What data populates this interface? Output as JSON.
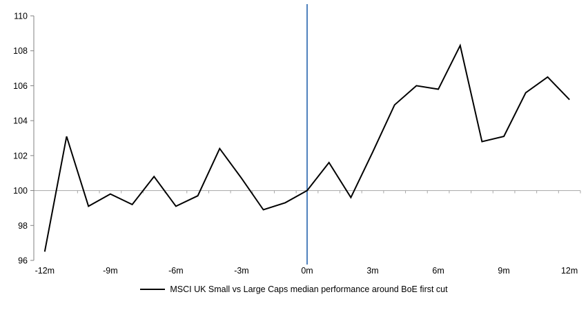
{
  "chart_data": {
    "type": "line",
    "title": "",
    "x_months": [
      -12,
      -11,
      -10,
      -9,
      -8,
      -7,
      -6,
      -5,
      -4,
      -3,
      -2,
      -1,
      0,
      1,
      2,
      3,
      4,
      5,
      6,
      7,
      8,
      9,
      10,
      11,
      12
    ],
    "series": [
      {
        "name": "MSCI UK Small vs Large Caps median performance around BoE first cut",
        "color": "#000000",
        "values": [
          96.5,
          103.1,
          99.1,
          99.8,
          99.2,
          100.8,
          99.1,
          99.7,
          102.4,
          100.7,
          98.9,
          99.3,
          100.0,
          101.6,
          99.6,
          102.2,
          104.9,
          106.0,
          105.8,
          108.3,
          102.8,
          103.1,
          105.6,
          106.5,
          105.2
        ]
      }
    ],
    "xticks": [
      {
        "value": -12,
        "label": "-12m"
      },
      {
        "value": -9,
        "label": "-9m"
      },
      {
        "value": -6,
        "label": "-6m"
      },
      {
        "value": -3,
        "label": "-3m"
      },
      {
        "value": 0,
        "label": "0m"
      },
      {
        "value": 3,
        "label": "3m"
      },
      {
        "value": 6,
        "label": "6m"
      },
      {
        "value": 9,
        "label": "9m"
      },
      {
        "value": 12,
        "label": "12m"
      }
    ],
    "yticks": [
      "96",
      "98",
      "100",
      "102",
      "104",
      "106",
      "108",
      "110"
    ],
    "ylim": [
      96,
      110
    ],
    "baseline_value": 100,
    "event_line_x": 0,
    "grid": "off",
    "legend_position": "bottom",
    "colors": {
      "series_line": "#000000",
      "event_line": "#4f81bd",
      "baseline_line": "#a6a6a6",
      "axis_line": "#808080",
      "label_text": "#000000"
    }
  },
  "legend": {
    "series_label": "MSCI UK Small vs Large Caps median performance around BoE first cut"
  }
}
